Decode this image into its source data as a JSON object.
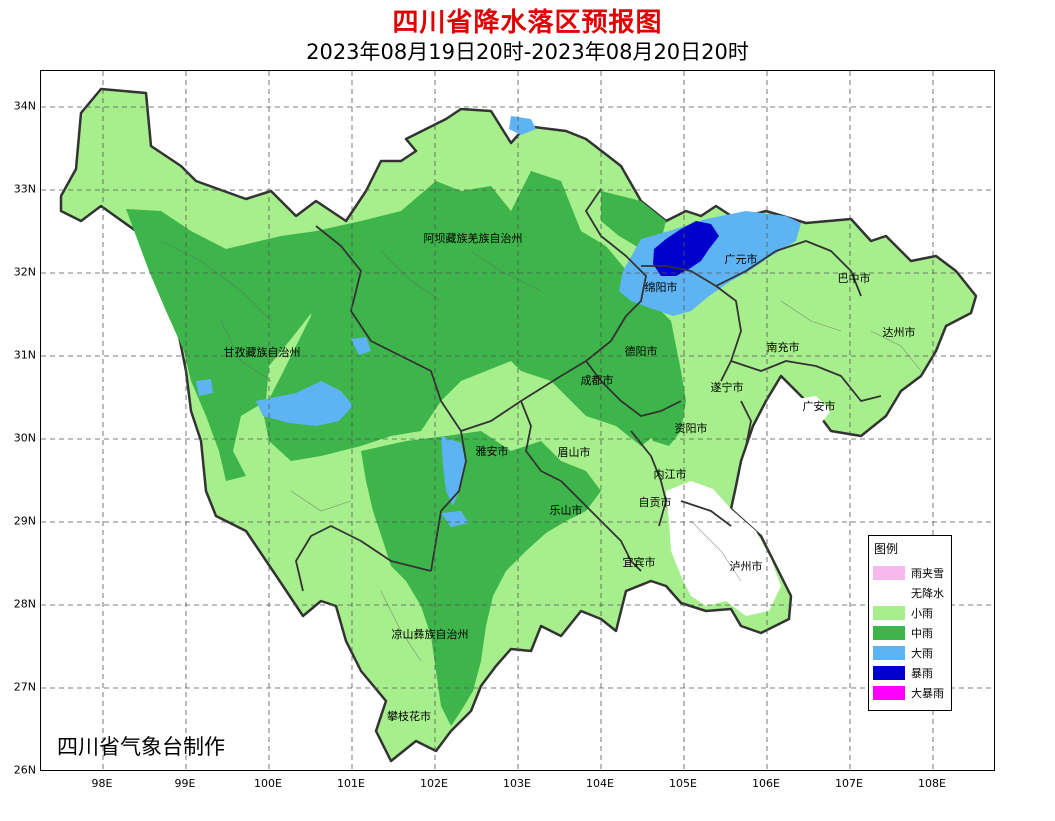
{
  "header": {
    "title": "四川省降水落区预报图",
    "period": "2023年08月19日20时-2023年08月20日20时"
  },
  "axes": {
    "latitudes": [
      "34N",
      "33N",
      "32N",
      "31N",
      "30N",
      "29N",
      "28N",
      "27N",
      "26N"
    ],
    "longitudes": [
      "98E",
      "99E",
      "100E",
      "101E",
      "102E",
      "103E",
      "104E",
      "105E",
      "106E",
      "107E",
      "108E"
    ]
  },
  "regions": {
    "aba": "阿坝藏族羌族自治州",
    "ganzi": "甘孜藏族自治州",
    "liangshan": "凉山彝族自治州",
    "mianyang": "绵阳市",
    "guangyuan": "广元市",
    "bazhong": "巴中市",
    "dazhou": "达州市",
    "nanchong": "南充市",
    "deyang": "德阳市",
    "chengdu": "成都市",
    "suining": "遂宁市",
    "guangan": "广安市",
    "ziyang": "资阳市",
    "yaan": "雅安市",
    "meishan": "眉山市",
    "neijiang": "内江市",
    "zigong": "自贡市",
    "leshan": "乐山市",
    "yibin": "宜宾市",
    "luzhou": "泸州市",
    "panzhihua": "攀枝花市"
  },
  "legend": {
    "title": "图例",
    "items": [
      {
        "label": "雨夹雪",
        "color": "#f7b8f0"
      },
      {
        "label": "无降水",
        "color": "#ffffff"
      },
      {
        "label": "小雨",
        "color": "#a6ef8c"
      },
      {
        "label": "中雨",
        "color": "#3db54a"
      },
      {
        "label": "大雨",
        "color": "#5eb4f3"
      },
      {
        "label": "暴雨",
        "color": "#0000cd"
      },
      {
        "label": "大暴雨",
        "color": "#ff00ff"
      }
    ]
  },
  "credit": "四川省气象台制作"
}
